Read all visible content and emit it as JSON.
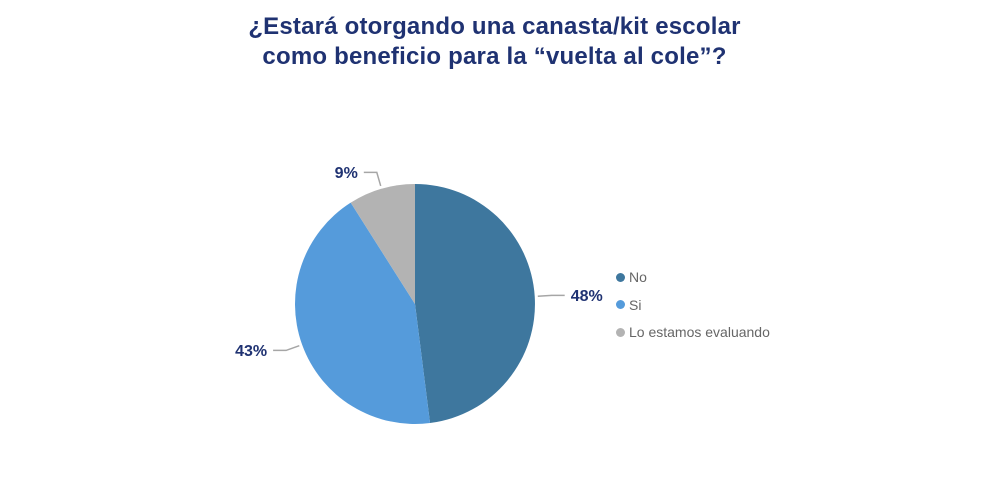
{
  "page": {
    "background": "#FFFFFF"
  },
  "title": {
    "line1": "¿Estará otorgando una canasta/kit escolar",
    "line2": "como beneficio para la “vuelta al cole”?",
    "color": "#1F3272"
  },
  "chart_data": {
    "type": "pie",
    "title": "¿Estará otorgando una canasta/kit escolar como beneficio para la “vuelta al cole”?",
    "categories": [
      "No",
      "Si",
      "Lo estamos evaluando"
    ],
    "values": [
      48,
      43,
      9
    ],
    "unit": "%",
    "data_labels": [
      "48%",
      "43%",
      "9%"
    ],
    "colors": [
      "#3E779E",
      "#559BDB",
      "#B3B3B3"
    ],
    "start_angle_deg": 0,
    "direction": "clockwise",
    "legend_position": "right",
    "label_color": "#1F3272",
    "leader_line_color": "#A6A6A6",
    "grid": false
  },
  "legend": {
    "text_color": "#666666",
    "items": [
      {
        "label": "No",
        "color": "#3E779E"
      },
      {
        "label": "Si",
        "color": "#559BDB"
      },
      {
        "label": "Lo estamos evaluando",
        "color": "#B3B3B3"
      }
    ]
  }
}
